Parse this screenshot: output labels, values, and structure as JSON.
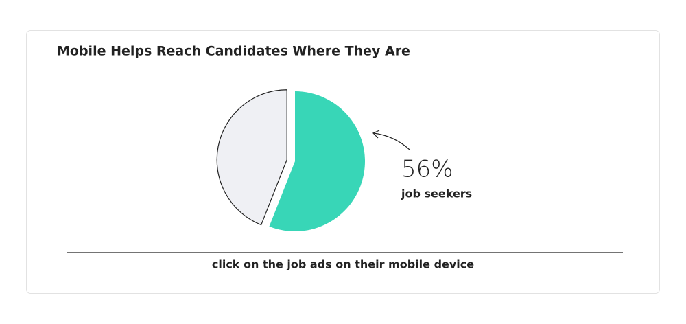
{
  "chart_data": {
    "type": "pie",
    "title": "Mobile Helps Reach Candidates Where They Are",
    "categories": [
      "job seekers",
      null
    ],
    "values": [
      56,
      44
    ],
    "value_labels": [
      "56%",
      null
    ],
    "colors": [
      "#38d6b7",
      "#eff0f4"
    ],
    "annotation": "click on the job ads on their mobile device"
  }
}
